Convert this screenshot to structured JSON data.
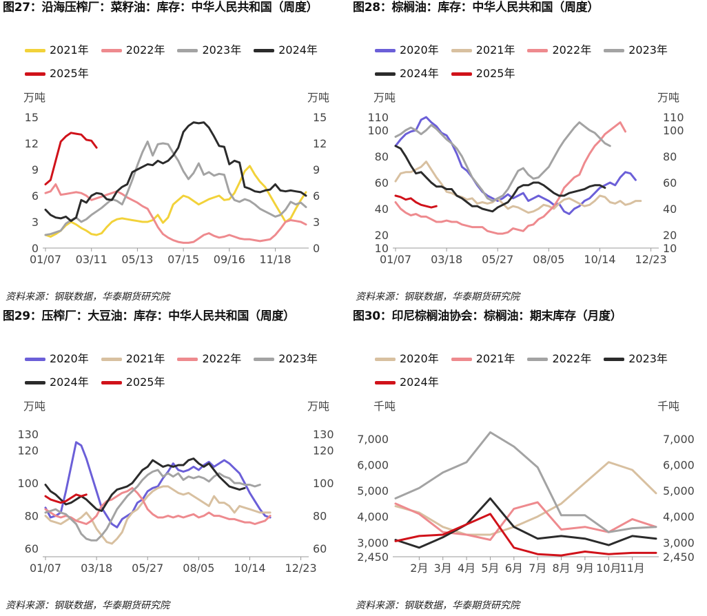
{
  "panels": [
    {
      "title": "图27：沿海压榨厂：菜籽油：库存：中华人民共和国（周度）",
      "unit_left": "万吨",
      "unit_right": "万吨",
      "source": "资料来源：钢联数据，华泰期货研究院"
    },
    {
      "title": "图28：棕榈油：库存：中华人民共和国（周度）",
      "unit_left": "万吨",
      "unit_right": "万吨",
      "source": "资料来源：钢联数据，华泰期货研究院"
    },
    {
      "title": "图29：压榨厂：大豆油：库存：中华人民共和国（周度）",
      "unit_left": "万吨",
      "unit_right": "万吨",
      "source": "资料来源：钢联数据，华泰期货研究院"
    },
    {
      "title": "图30：印尼棕榈油协会：棕榈油：期末库存（月度）",
      "unit_left": "千吨",
      "unit_right": "千吨",
      "source": "资料来源：钢联数据，华泰期货研究院"
    }
  ],
  "chart_data": [
    {
      "type": "line",
      "title": "图27：沿海压榨厂：菜籽油：库存：中华人民共和国（周度）",
      "ylabel": "万吨",
      "ylim": [
        0,
        15
      ],
      "yticks": [
        0,
        3,
        6,
        9,
        12,
        15
      ],
      "xticks": [
        "01/07",
        "03/11",
        "05/13",
        "07/15",
        "09/16",
        "11/18"
      ],
      "x_tick_pos": [
        0,
        9,
        18,
        27,
        36,
        45
      ],
      "x_count": 52,
      "legend_position": "top",
      "series": [
        {
          "name": "2021年",
          "color": "#f2d23a",
          "values": [
            1.5,
            1.3,
            1.6,
            2.0,
            2.6,
            3.0,
            2.7,
            2.3,
            2.0,
            1.6,
            1.5,
            1.7,
            2.4,
            3.0,
            3.3,
            3.4,
            3.3,
            3.2,
            3.1,
            3.0,
            3.0,
            3.2,
            3.8,
            2.9,
            3.5,
            5.0,
            5.5,
            6.0,
            5.8,
            5.4,
            5.0,
            5.3,
            5.6,
            5.8,
            6.0,
            5.5,
            5.6,
            6.3,
            7.5,
            8.8,
            9.4,
            8.4,
            7.6,
            7.0,
            6.0,
            5.0,
            4.0,
            3.0,
            3.4,
            4.5,
            5.5,
            6.4
          ]
        },
        {
          "name": "2022年",
          "color": "#ee8a8e",
          "values": [
            6.3,
            6.5,
            7.3,
            6.1,
            6.2,
            6.3,
            6.4,
            6.3,
            6.0,
            5.5,
            5.7,
            5.9,
            6.1,
            6.3,
            6.5,
            6.2,
            5.8,
            5.5,
            5.2,
            4.8,
            4.5,
            3.5,
            2.4,
            1.6,
            1.2,
            0.9,
            0.7,
            0.6,
            0.6,
            0.7,
            1.1,
            1.5,
            1.7,
            1.4,
            1.2,
            1.3,
            1.5,
            1.3,
            1.1,
            1.0,
            1.0,
            0.9,
            0.8,
            0.9,
            1.0,
            1.5,
            2.2,
            3.0,
            3.2,
            3.1,
            3.0,
            2.7
          ]
        },
        {
          "name": "2023年",
          "color": "#a3a3a3",
          "values": [
            1.5,
            1.6,
            1.8,
            2.0,
            2.8,
            3.2,
            3.5,
            3.0,
            3.3,
            3.8,
            4.2,
            4.6,
            5.1,
            5.6,
            5.4,
            5.0,
            6.3,
            7.8,
            9.5,
            11.0,
            12.2,
            10.6,
            11.9,
            12.0,
            11.9,
            10.9,
            10.0,
            8.8,
            7.9,
            8.6,
            9.7,
            8.4,
            8.7,
            8.3,
            8.5,
            8.4,
            6.4,
            5.5,
            5.3,
            5.6,
            5.4,
            5.0,
            4.5,
            4.2,
            3.9,
            3.6,
            3.8,
            4.4,
            5.3,
            5.0,
            5.2,
            4.7
          ]
        },
        {
          "name": "2024年",
          "color": "#2b2b2b",
          "values": [
            4.4,
            3.8,
            3.5,
            3.4,
            3.6,
            3.1,
            3.5,
            5.5,
            5.2,
            6.0,
            6.3,
            6.2,
            5.6,
            5.5,
            6.5,
            7.0,
            7.3,
            8.7,
            9.0,
            9.3,
            9.6,
            9.5,
            10.0,
            9.7,
            10.0,
            10.6,
            11.5,
            13.3,
            14.0,
            14.4,
            14.3,
            14.4,
            13.8,
            12.8,
            11.7,
            11.6,
            9.6,
            10.0,
            9.8,
            7.0,
            6.8,
            6.5,
            6.4,
            6.6,
            6.7,
            7.3,
            6.6,
            6.5,
            6.6,
            6.5,
            6.4,
            6.0
          ]
        },
        {
          "name": "2025年",
          "color": "#d0121a",
          "values": [
            7.3,
            7.8,
            10.0,
            12.2,
            12.8,
            13.2,
            13.1,
            13.0,
            12.4,
            12.3,
            11.5
          ]
        }
      ]
    },
    {
      "type": "line",
      "title": "图28：棕榈油：库存：中华人民共和国（周度）",
      "ylabel": "万吨",
      "ylim": [
        10,
        110
      ],
      "yticks": [
        10,
        20,
        40,
        60,
        80,
        100,
        110
      ],
      "xticks": [
        "01/07",
        "03/18",
        "05/27",
        "08/05",
        "10/14",
        "12/23"
      ],
      "x_tick_pos": [
        0,
        10,
        20,
        30,
        40,
        50
      ],
      "x_count": 52,
      "legend_position": "top",
      "series": [
        {
          "name": "2020年",
          "color": "#6b5fd8",
          "values": [
            88,
            93,
            97,
            99,
            100,
            108,
            110,
            106,
            103,
            98,
            96,
            90,
            82,
            72,
            69,
            64,
            58,
            53,
            50,
            48,
            46,
            48,
            51,
            48,
            50,
            52,
            46,
            48,
            50,
            48,
            46,
            43,
            44,
            38,
            36,
            40,
            42,
            46,
            48,
            52,
            56,
            58,
            60,
            58,
            64,
            68,
            67,
            62
          ]
        },
        {
          "name": "2021年",
          "color": "#d8c0a0",
          "values": [
            61,
            67,
            68,
            68,
            70,
            72,
            76,
            70,
            64,
            59,
            53,
            52,
            50,
            49,
            47,
            48,
            44,
            45,
            44,
            45,
            48,
            44,
            40,
            42,
            41,
            39,
            37,
            38,
            40,
            43,
            42,
            40,
            44,
            47,
            48,
            46,
            44,
            42,
            43,
            46,
            50,
            49,
            45,
            44,
            46,
            43,
            44,
            46,
            46
          ]
        },
        {
          "name": "2022年",
          "color": "#ee8a8e",
          "values": [
            45,
            40,
            37,
            35,
            36,
            34,
            34,
            32,
            30,
            30,
            31,
            30,
            30,
            28,
            27,
            26,
            26,
            26,
            23,
            22,
            21,
            21,
            22,
            25,
            24,
            23,
            27,
            28,
            32,
            34,
            38,
            42,
            48,
            56,
            60,
            64,
            66,
            75,
            82,
            88,
            92,
            97,
            100,
            103,
            106,
            99
          ]
        },
        {
          "name": "2023年",
          "color": "#a3a3a3",
          "values": [
            95,
            97,
            100,
            102,
            100,
            97,
            100,
            104,
            101,
            97,
            93,
            90,
            86,
            80,
            72,
            64,
            59,
            54,
            48,
            46,
            48,
            50,
            55,
            62,
            69,
            71,
            66,
            63,
            64,
            68,
            72,
            79,
            86,
            92,
            97,
            102,
            106,
            103,
            100,
            98,
            94,
            90,
            88
          ]
        },
        {
          "name": "2024年",
          "color": "#2b2b2b",
          "values": [
            88,
            86,
            80,
            73,
            67,
            68,
            64,
            60,
            57,
            57,
            55,
            55,
            50,
            48,
            45,
            42,
            42,
            40,
            39,
            38,
            41,
            43,
            45,
            50,
            56,
            58,
            58,
            60,
            60,
            58,
            55,
            52,
            50,
            50,
            52,
            53,
            54,
            55,
            57,
            58,
            58,
            56
          ]
        },
        {
          "name": "2025年",
          "color": "#d0121a",
          "values": [
            50,
            49,
            47,
            48,
            45,
            43,
            42,
            41,
            42
          ]
        }
      ]
    },
    {
      "type": "line",
      "title": "图29：压榨厂：大豆油：库存：中华人民共和国（周度）",
      "ylabel": "万吨",
      "ylim": [
        55,
        135
      ],
      "yticks": [
        60,
        80,
        100,
        120,
        130
      ],
      "xticks": [
        "01/07",
        "03/18",
        "05/27",
        "08/05",
        "10/14",
        "12/23"
      ],
      "x_tick_pos": [
        0,
        10,
        20,
        30,
        40,
        50
      ],
      "x_count": 52,
      "legend_position": "top",
      "series": [
        {
          "name": "2020年",
          "color": "#6b5fd8",
          "values": [
            85,
            79,
            80,
            82,
            95,
            110,
            125,
            123,
            115,
            105,
            95,
            85,
            80,
            75,
            73,
            78,
            80,
            82,
            88,
            90,
            95,
            97,
            98,
            103,
            107,
            112,
            108,
            107,
            108,
            110,
            108,
            111,
            113,
            110,
            112,
            114,
            112,
            109,
            106,
            100,
            94,
            89,
            84,
            80,
            79
          ]
        },
        {
          "name": "2021年",
          "color": "#d8c0a0",
          "values": [
            80,
            77,
            76,
            75,
            77,
            79,
            77,
            79,
            82,
            78,
            72,
            68,
            64,
            63,
            66,
            70,
            78,
            82,
            84,
            88,
            92,
            95,
            97,
            98,
            98,
            96,
            94,
            93,
            94,
            92,
            90,
            88,
            86,
            92,
            88,
            88,
            86,
            82,
            86,
            85,
            84,
            83,
            82,
            82,
            82
          ]
        },
        {
          "name": "2022年",
          "color": "#ee8a8e",
          "values": [
            84,
            82,
            80,
            79,
            80,
            79,
            77,
            76,
            75,
            77,
            80,
            86,
            89,
            90,
            92,
            94,
            95,
            97,
            94,
            90,
            84,
            81,
            79,
            79,
            80,
            79,
            80,
            79,
            80,
            81,
            79,
            80,
            82,
            80,
            80,
            79,
            78,
            78,
            77,
            76,
            76,
            75,
            76,
            77,
            80
          ]
        },
        {
          "name": "2023年",
          "color": "#a3a3a3",
          "values": [
            82,
            83,
            84,
            82,
            81,
            78,
            75,
            69,
            66,
            65,
            65,
            68,
            72,
            78,
            84,
            88,
            92,
            95,
            98,
            102,
            105,
            107,
            108,
            104,
            106,
            104,
            106,
            102,
            104,
            103,
            104,
            103,
            101,
            104,
            106,
            104,
            103,
            100,
            100,
            99,
            99,
            98,
            99
          ]
        },
        {
          "name": "2024年",
          "color": "#2b2b2b",
          "values": [
            99,
            95,
            93,
            90,
            87,
            88,
            90,
            92,
            90,
            87,
            84,
            83,
            88,
            93,
            96,
            97,
            98,
            100,
            104,
            108,
            110,
            114,
            112,
            110,
            111,
            110,
            111,
            111,
            114,
            115,
            112,
            110,
            112,
            108,
            104,
            101,
            98,
            97,
            96,
            97
          ]
        },
        {
          "name": "2025年",
          "color": "#d0121a",
          "values": [
            92,
            90,
            89,
            88,
            89,
            91,
            93,
            92,
            93
          ]
        }
      ]
    },
    {
      "type": "line",
      "title": "图30：印尼棕榈油协会：棕榈油：期末库存（月度）",
      "ylabel": "千吨",
      "ylim": [
        2450,
        7500
      ],
      "yticks": [
        2450,
        3000,
        4000,
        5000,
        6000,
        7000
      ],
      "xticks": [
        "2月",
        "3月",
        "4月",
        "5月",
        "6月",
        "7月",
        "8月",
        "9月",
        "10月",
        "11月"
      ],
      "x_tick_pos": [
        1,
        2,
        3,
        4,
        5,
        6,
        7,
        8,
        9,
        10
      ],
      "x_count": 12,
      "legend_position": "top",
      "series": [
        {
          "name": "2020年",
          "color": "#d8c0a0",
          "values": [
            4400,
            4150,
            3600,
            3300,
            3300,
            3600,
            4000,
            4500,
            5300,
            6100,
            5800,
            4900
          ]
        },
        {
          "name": "2021年",
          "color": "#ee8a8e",
          "values": [
            4500,
            4100,
            3400,
            3300,
            3100,
            4300,
            4550,
            3500,
            3600,
            3400,
            3900,
            3600
          ]
        },
        {
          "name": "2022年",
          "color": "#a3a3a3",
          "values": [
            4700,
            5100,
            5700,
            6100,
            7250,
            6700,
            5900,
            4050,
            4050,
            3400,
            3550,
            3600
          ]
        },
        {
          "name": "2023年",
          "color": "#2b2b2b",
          "values": [
            3100,
            2800,
            3200,
            3700,
            4700,
            3600,
            3150,
            3250,
            3150,
            2900,
            3250,
            3150
          ]
        },
        {
          "name": "2024年",
          "color": "#d0121a",
          "values": [
            3050,
            3250,
            3300,
            3700,
            4100,
            2800,
            2550,
            2500,
            2650,
            2550,
            2600,
            2600
          ]
        }
      ]
    }
  ]
}
